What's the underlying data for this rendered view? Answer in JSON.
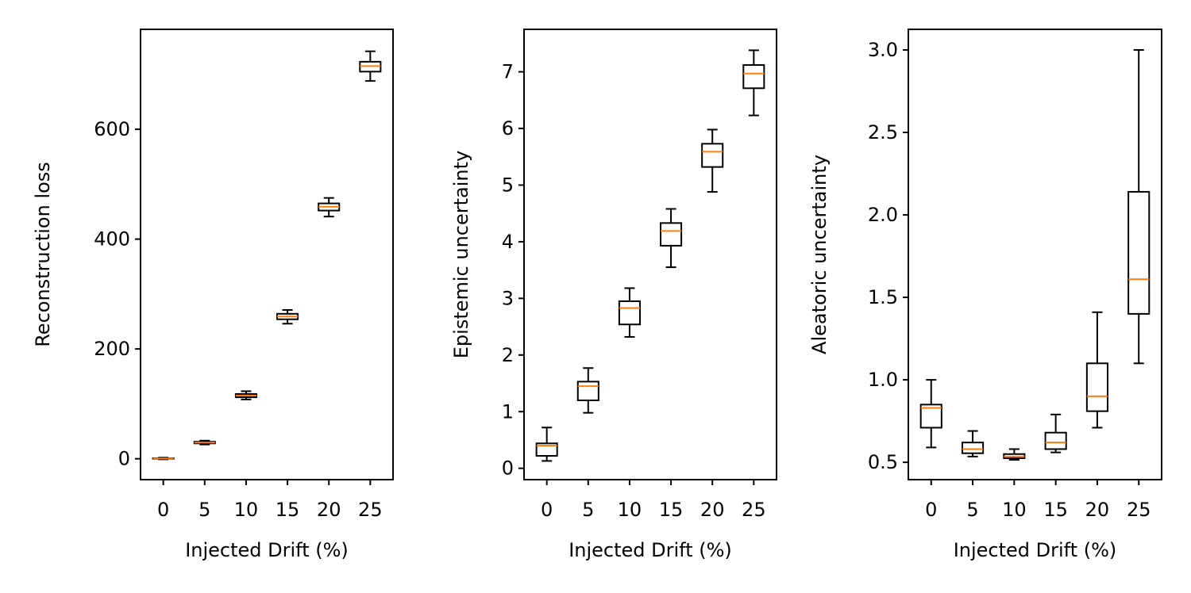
{
  "chart_data": [
    {
      "type": "box",
      "xlabel": "Injected Drift (%)",
      "ylabel": "Reconstruction loss",
      "categories": [
        "0",
        "5",
        "10",
        "15",
        "20",
        "25"
      ],
      "ylim": [
        -38,
        782
      ],
      "yticks": [
        0,
        200,
        400,
        600
      ],
      "boxes": [
        {
          "min": -1,
          "q1": 0,
          "median": 0.5,
          "q3": 1,
          "max": 2
        },
        {
          "min": 26,
          "q1": 28,
          "median": 29.5,
          "q3": 31,
          "max": 33
        },
        {
          "min": 108,
          "q1": 112,
          "median": 115,
          "q3": 118,
          "max": 123
        },
        {
          "min": 246,
          "q1": 254,
          "median": 259,
          "q3": 264,
          "max": 271
        },
        {
          "min": 441,
          "q1": 452,
          "median": 459,
          "q3": 465,
          "max": 475
        },
        {
          "min": 688,
          "q1": 705,
          "median": 715,
          "q3": 723,
          "max": 742
        }
      ]
    },
    {
      "type": "box",
      "xlabel": "Injected Drift (%)",
      "ylabel": "Epistemic uncertainty",
      "categories": [
        "0",
        "5",
        "10",
        "15",
        "20",
        "25"
      ],
      "ylim": [
        -0.2,
        7.75
      ],
      "yticks": [
        0,
        1,
        2,
        3,
        4,
        5,
        6,
        7
      ],
      "boxes": [
        {
          "min": 0.13,
          "q1": 0.22,
          "median": 0.4,
          "q3": 0.44,
          "max": 0.72
        },
        {
          "min": 0.98,
          "q1": 1.2,
          "median": 1.45,
          "q3": 1.53,
          "max": 1.77
        },
        {
          "min": 2.32,
          "q1": 2.54,
          "median": 2.83,
          "q3": 2.95,
          "max": 3.18
        },
        {
          "min": 3.55,
          "q1": 3.93,
          "median": 4.19,
          "q3": 4.33,
          "max": 4.58
        },
        {
          "min": 4.88,
          "q1": 5.32,
          "median": 5.59,
          "q3": 5.73,
          "max": 5.98
        },
        {
          "min": 6.23,
          "q1": 6.71,
          "median": 6.97,
          "q3": 7.12,
          "max": 7.38
        }
      ]
    },
    {
      "type": "box",
      "xlabel": "Injected Drift (%)",
      "ylabel": "Aleatoric uncertainty",
      "categories": [
        "0",
        "5",
        "10",
        "15",
        "20",
        "25"
      ],
      "ylim": [
        0.395,
        3.125
      ],
      "yticks": [
        0.5,
        1.0,
        1.5,
        2.0,
        2.5,
        3.0
      ],
      "ytick_labels": [
        "0.5",
        "1.0",
        "1.5",
        "2.0",
        "2.5",
        "3.0"
      ],
      "boxes": [
        {
          "min": 0.59,
          "q1": 0.71,
          "median": 0.83,
          "q3": 0.85,
          "max": 1.0
        },
        {
          "min": 0.535,
          "q1": 0.555,
          "median": 0.58,
          "q3": 0.62,
          "max": 0.69
        },
        {
          "min": 0.515,
          "q1": 0.525,
          "median": 0.535,
          "q3": 0.55,
          "max": 0.58
        },
        {
          "min": 0.56,
          "q1": 0.58,
          "median": 0.62,
          "q3": 0.68,
          "max": 0.79
        },
        {
          "min": 0.71,
          "q1": 0.81,
          "median": 0.9,
          "q3": 1.1,
          "max": 1.41
        },
        {
          "min": 1.1,
          "q1": 1.4,
          "median": 1.61,
          "q3": 2.14,
          "max": 3.0
        }
      ]
    }
  ],
  "colors": {
    "median": "#ff7f0e",
    "box": "#000000"
  }
}
